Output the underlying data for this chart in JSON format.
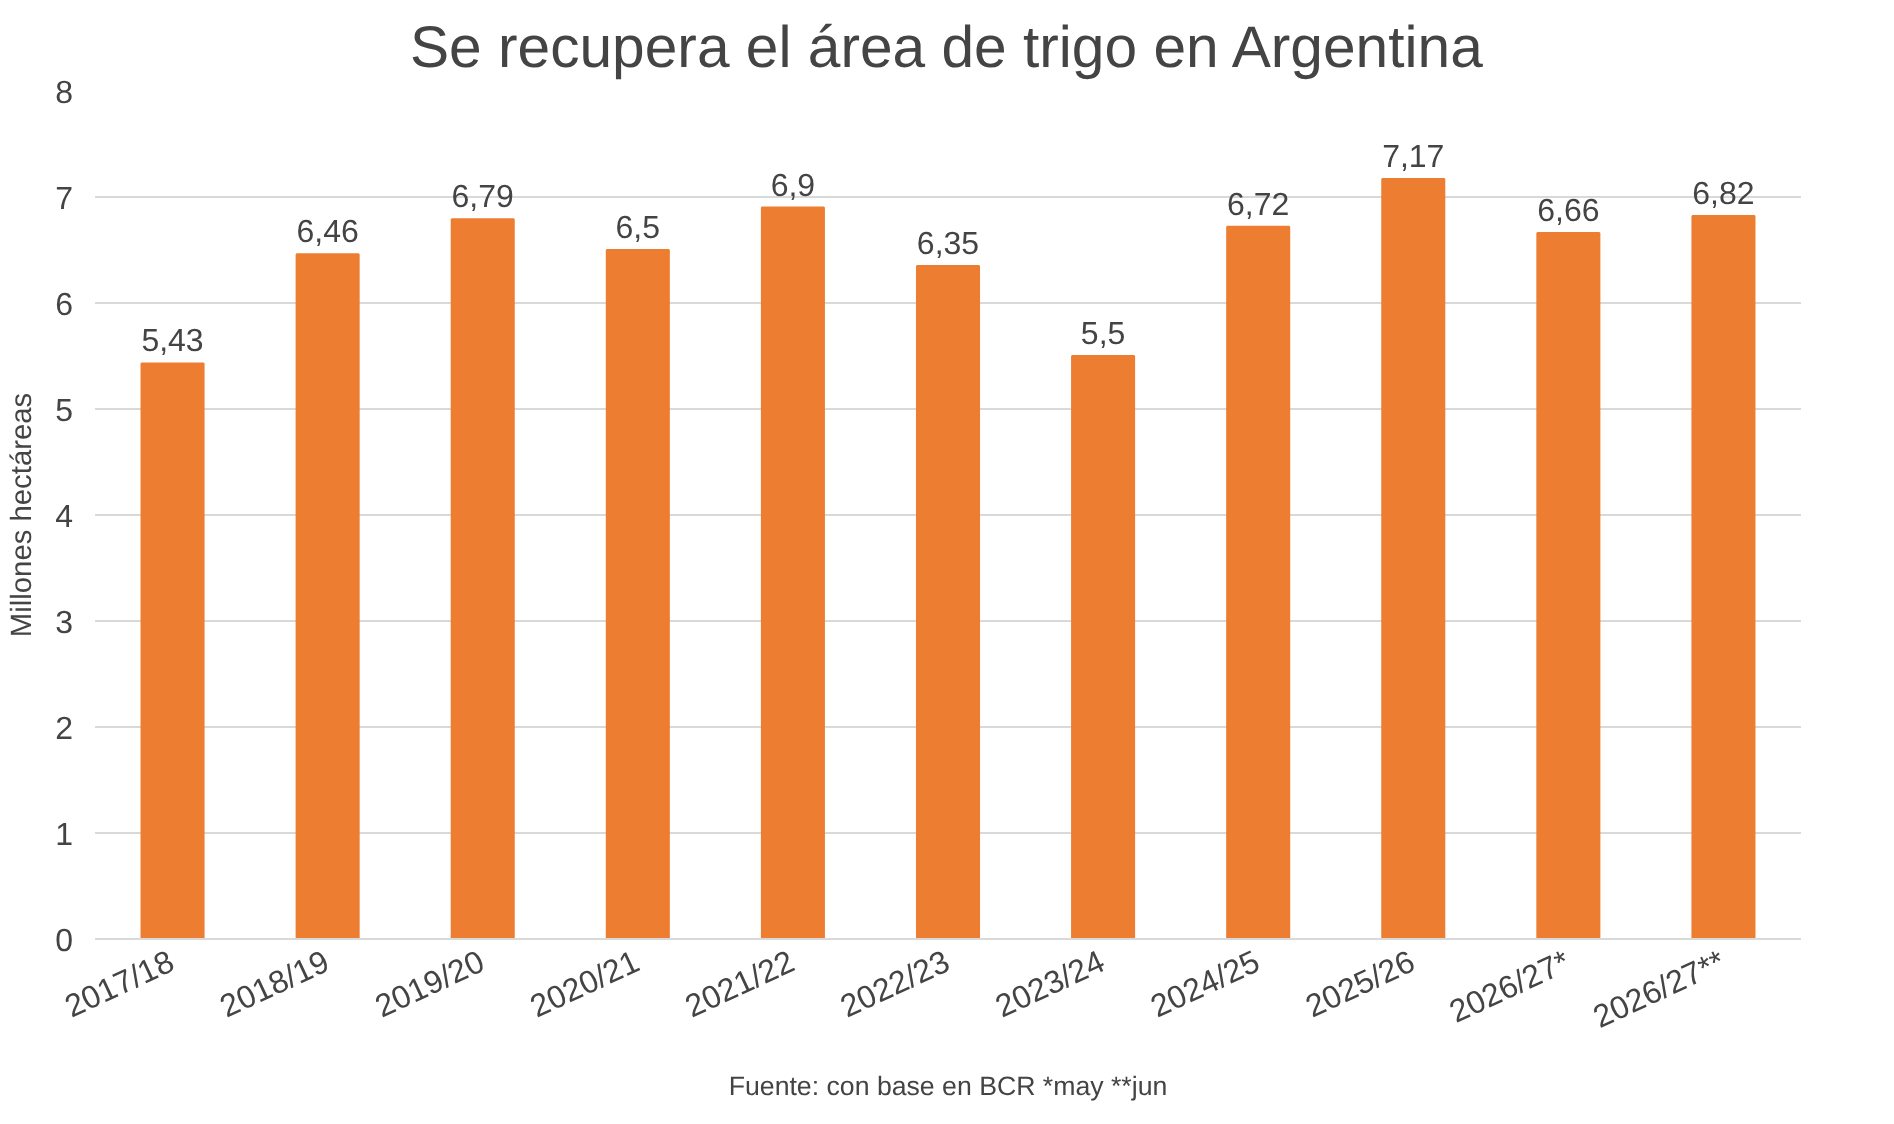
{
  "chart_data": {
    "type": "bar",
    "title": "Se recupera el área de trigo en Argentina",
    "ylabel": "Millones hectáreas",
    "categories": [
      "2017/18",
      "2018/19",
      "2019/20",
      "2020/21",
      "2021/22",
      "2022/23",
      "2023/24",
      "2024/25",
      "2025/26",
      "2026/27*",
      "2026/27**"
    ],
    "values": [
      5.43,
      6.46,
      6.79,
      6.5,
      6.9,
      6.35,
      5.5,
      6.72,
      7.17,
      6.66,
      6.82
    ],
    "value_labels": [
      "5,43",
      "6,46",
      "6,79",
      "6,5",
      "6,9",
      "6,35",
      "5,5",
      "6,72",
      "7,17",
      "6,66",
      "6,82"
    ],
    "color": "#ed7d31",
    "ylim": [
      0,
      8
    ],
    "yticks": [
      0,
      1,
      2,
      3,
      4,
      5,
      6,
      7,
      8
    ],
    "grid": "y",
    "annotations": [
      "Fuente: con base en BCR *may **jun"
    ]
  }
}
